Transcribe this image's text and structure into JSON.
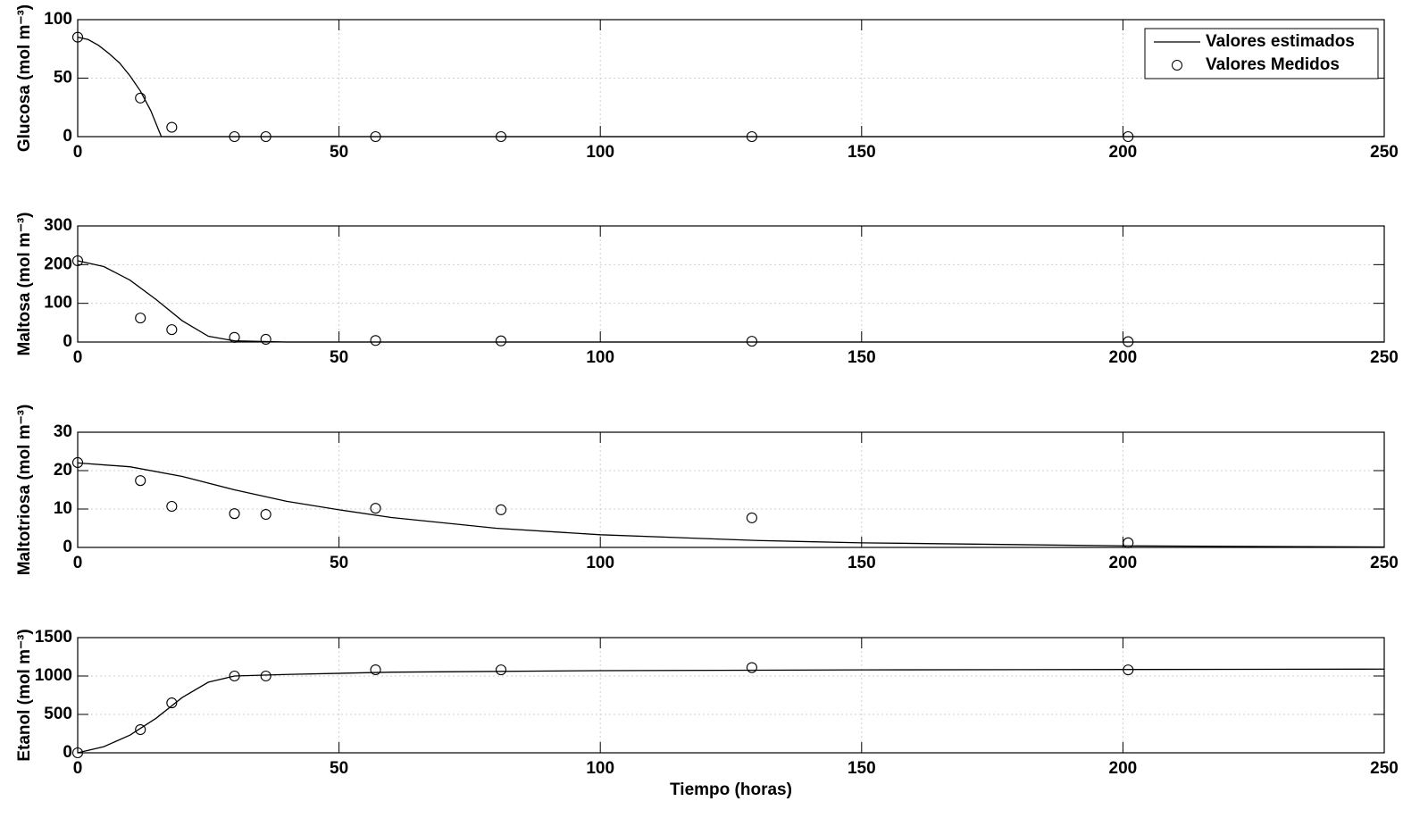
{
  "chart_data": [
    {
      "type": "line",
      "ylabel": "Glucosa (mol m⁻³)",
      "xlim": [
        0,
        250
      ],
      "xticks": [
        0,
        50,
        100,
        150,
        200,
        250
      ],
      "ylim": [
        0,
        100
      ],
      "yticks": [
        0,
        50,
        100
      ],
      "grid": true,
      "legend": "upper right",
      "series": [
        {
          "name": "Valores estimados",
          "type": "line",
          "color": "#000000",
          "x": [
            0,
            2,
            4,
            6,
            8,
            10,
            12,
            14,
            16,
            250
          ],
          "values": [
            85,
            83,
            78,
            71,
            63,
            52,
            39,
            22,
            0,
            0
          ]
        },
        {
          "name": "Valores Medidos",
          "type": "scatter",
          "color": "#000000",
          "x": [
            0,
            12,
            18,
            30,
            36,
            57,
            81,
            129,
            201
          ],
          "values": [
            85,
            33,
            8,
            0,
            0,
            0,
            0,
            0,
            0
          ]
        }
      ]
    },
    {
      "type": "line",
      "ylabel": "Maltosa (mol m⁻³)",
      "xlim": [
        0,
        250
      ],
      "xticks": [
        0,
        50,
        100,
        150,
        200,
        250
      ],
      "ylim": [
        0,
        300
      ],
      "yticks": [
        0,
        100,
        200,
        300
      ],
      "grid": true,
      "series": [
        {
          "type": "line",
          "color": "#000000",
          "x": [
            0,
            5,
            10,
            15,
            20,
            25,
            30,
            40,
            250
          ],
          "values": [
            210,
            195,
            160,
            110,
            55,
            15,
            3,
            0,
            0
          ]
        },
        {
          "type": "scatter",
          "color": "#000000",
          "x": [
            0,
            12,
            18,
            30,
            36,
            57,
            81,
            129,
            201
          ],
          "values": [
            210,
            62,
            32,
            12,
            7,
            4,
            3,
            2,
            1
          ]
        }
      ]
    },
    {
      "type": "line",
      "ylabel": "Maltotriosa (mol m⁻³)",
      "xlim": [
        0,
        250
      ],
      "xticks": [
        0,
        50,
        100,
        150,
        200,
        250
      ],
      "ylim": [
        0,
        30
      ],
      "yticks": [
        0,
        10,
        20,
        30
      ],
      "grid": true,
      "series": [
        {
          "type": "line",
          "color": "#000000",
          "x": [
            0,
            10,
            20,
            30,
            40,
            50,
            60,
            80,
            100,
            130,
            150,
            200,
            250
          ],
          "values": [
            22,
            21,
            18.5,
            15,
            12,
            9.8,
            7.8,
            5,
            3.3,
            1.8,
            1.2,
            0.4,
            0.1
          ]
        },
        {
          "type": "scatter",
          "color": "#000000",
          "x": [
            0,
            12,
            18,
            30,
            36,
            57,
            81,
            129,
            201
          ],
          "values": [
            22.1,
            17.4,
            10.7,
            8.8,
            8.6,
            10.2,
            9.8,
            7.7,
            1.2
          ]
        }
      ]
    },
    {
      "type": "line",
      "ylabel": "Etanol (mol m⁻³)",
      "xlabel": "Tiempo (horas)",
      "xlim": [
        0,
        250
      ],
      "xticks": [
        0,
        50,
        100,
        150,
        200,
        250
      ],
      "ylim": [
        0,
        1500
      ],
      "yticks": [
        0,
        500,
        1000,
        1500
      ],
      "grid": true,
      "series": [
        {
          "type": "line",
          "color": "#000000",
          "x": [
            0,
            5,
            10,
            15,
            20,
            25,
            30,
            40,
            60,
            100,
            150,
            250
          ],
          "values": [
            0,
            80,
            230,
            450,
            720,
            920,
            1000,
            1020,
            1050,
            1070,
            1080,
            1090
          ]
        },
        {
          "type": "scatter",
          "color": "#000000",
          "x": [
            0,
            12,
            18,
            30,
            36,
            57,
            81,
            129,
            201
          ],
          "values": [
            0,
            302,
            650,
            1000,
            1000,
            1081,
            1080,
            1110,
            1080
          ]
        }
      ]
    }
  ]
}
